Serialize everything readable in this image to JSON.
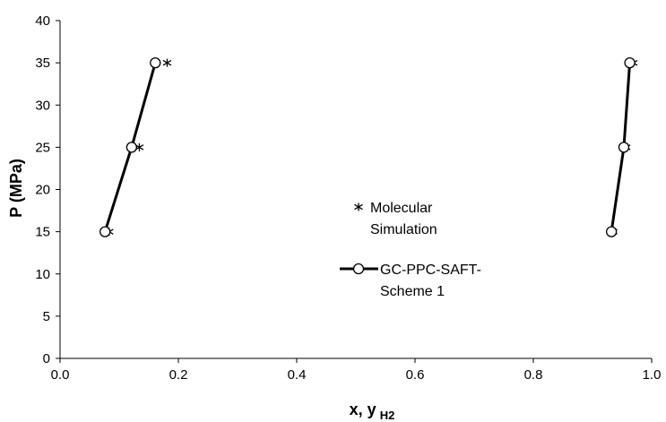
{
  "chart_data": {
    "type": "scatter",
    "title": "",
    "xlabel": "x, y",
    "xlabel_sub": "H2",
    "ylabel": "P (MPa)",
    "xlim": [
      0.0,
      1.0
    ],
    "ylim": [
      0,
      40
    ],
    "xticks": [
      "0.0",
      "0.2",
      "0.4",
      "0.6",
      "0.8",
      "1.0"
    ],
    "xtick_values": [
      0.0,
      0.2,
      0.4,
      0.6,
      0.8,
      1.0
    ],
    "yticks": [
      "0",
      "5",
      "10",
      "15",
      "20",
      "25",
      "30",
      "35",
      "40"
    ],
    "ytick_values": [
      0,
      5,
      10,
      15,
      20,
      25,
      30,
      35,
      40
    ],
    "grid": false,
    "legend_position": "center",
    "series": [
      {
        "name": "Molecular Simulation",
        "legend_lines": [
          "Molecular",
          "Simulation"
        ],
        "marker": "asterisk",
        "line": false,
        "color": "#000000",
        "branches": [
          {
            "x": [
              0.083,
              0.134,
              0.181
            ],
            "y": [
              15,
              25,
              35
            ]
          },
          {
            "x": [
              0.935,
              0.957,
              0.969
            ],
            "y": [
              15,
              25,
              35
            ]
          }
        ]
      },
      {
        "name": "GC-PPC-SAFT-Scheme 1",
        "legend_lines": [
          "GC-PPC-SAFT-",
          "Scheme 1"
        ],
        "marker": "open-circle",
        "line": true,
        "color": "#000000",
        "branches": [
          {
            "x": [
              0.076,
              0.121,
              0.161
            ],
            "y": [
              15,
              25,
              35
            ]
          },
          {
            "x": [
              0.932,
              0.953,
              0.963
            ],
            "y": [
              15,
              25,
              35
            ]
          }
        ]
      }
    ]
  }
}
